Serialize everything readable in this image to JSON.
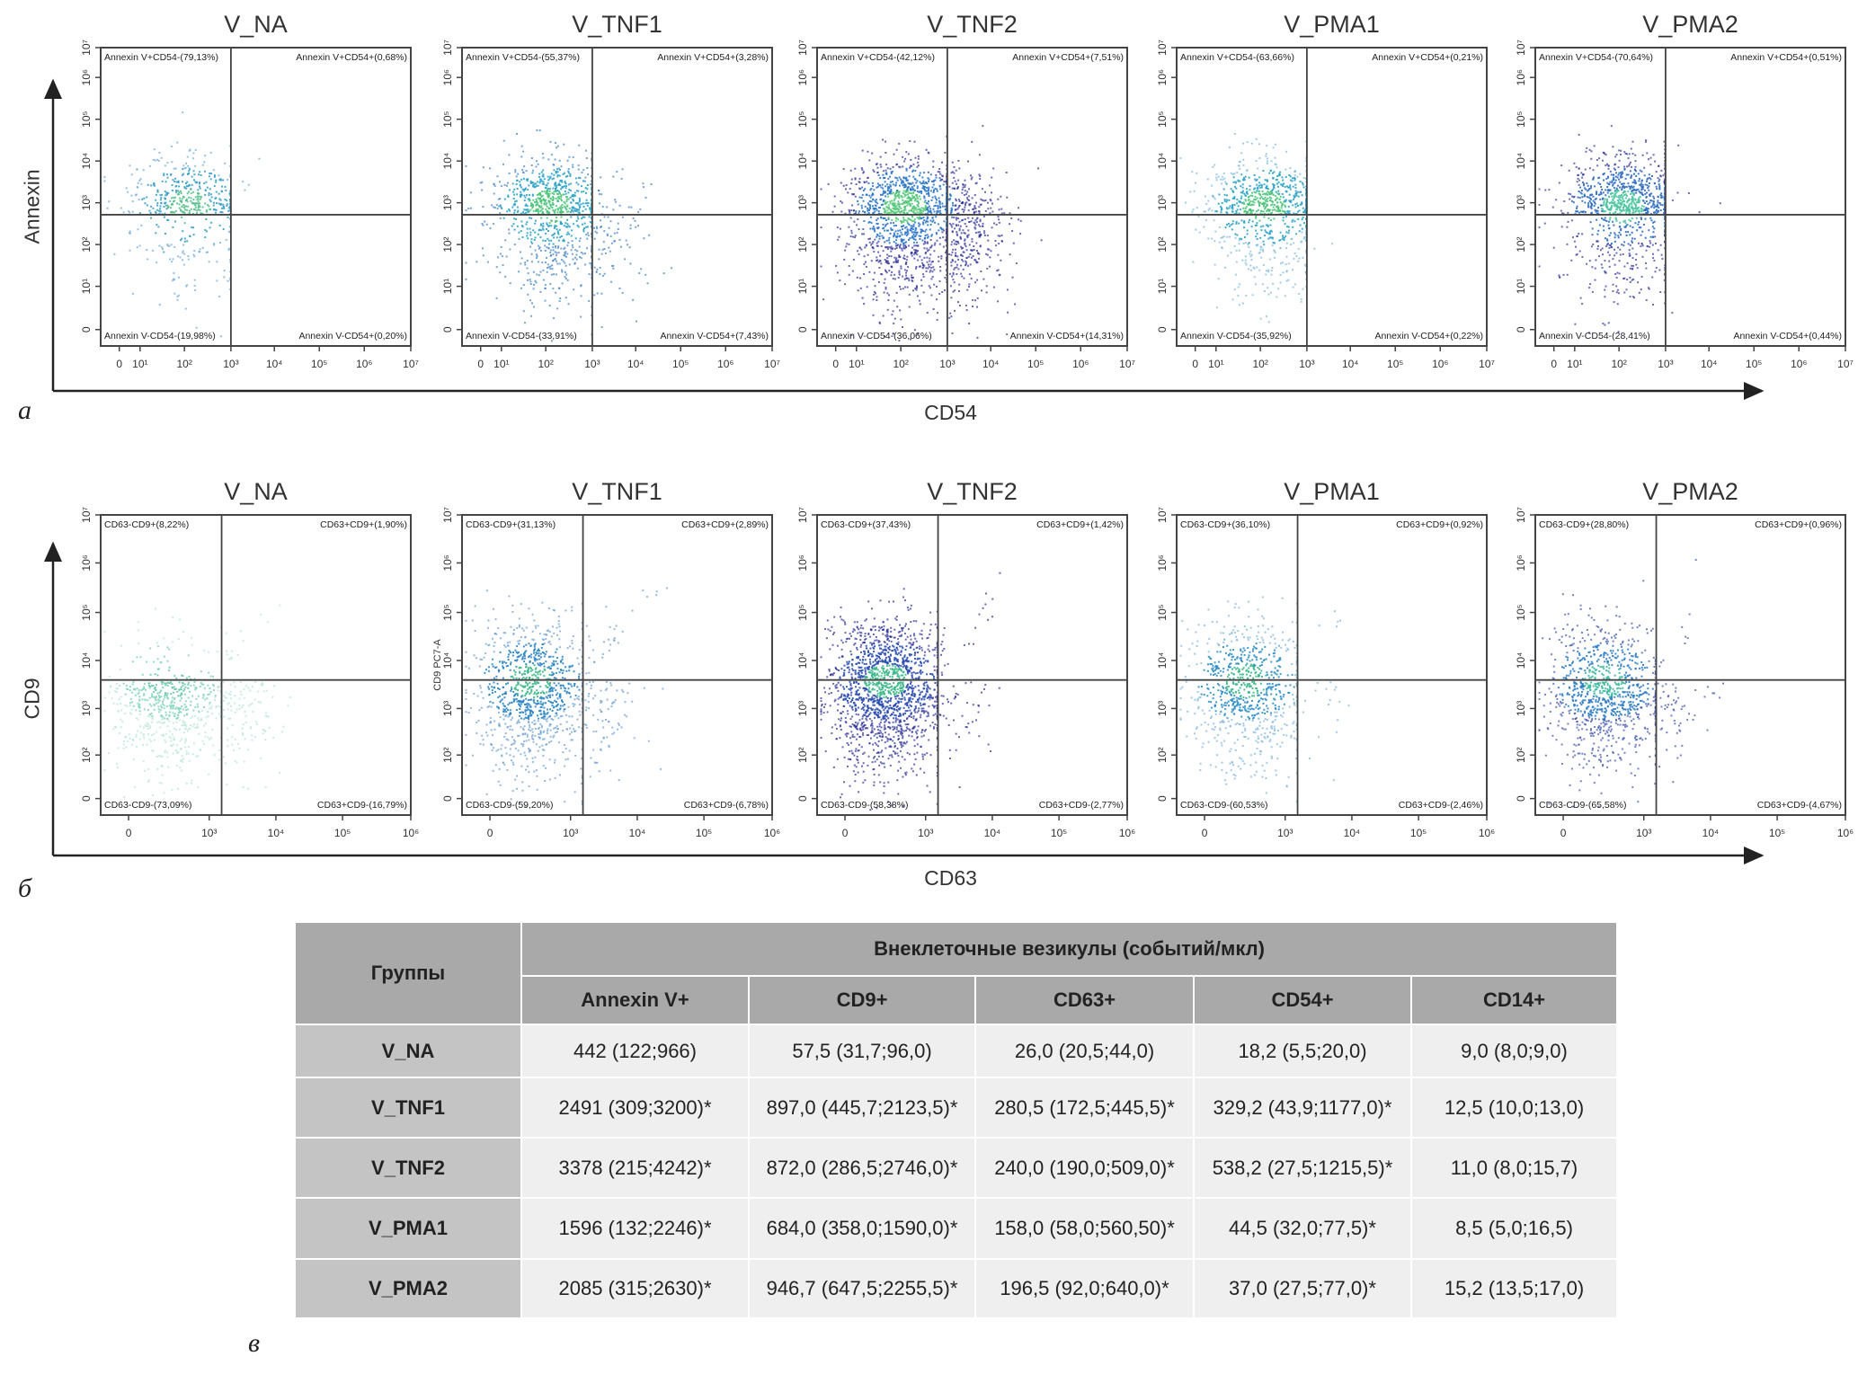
{
  "figure_letters": {
    "a": "а",
    "b": "б",
    "c": "в"
  },
  "chart_data": [
    {
      "type": "scatter",
      "row": "a",
      "xlabel": "CD54",
      "ylabel": "Annexin",
      "x_ticks": [
        "0",
        "10¹",
        "10²",
        "10³",
        "10⁴",
        "10⁵",
        "10⁶",
        "10⁷"
      ],
      "y_ticks": [
        "0",
        "10¹",
        "10²",
        "10³",
        "10⁴",
        "10⁵",
        "10⁶",
        "10⁷"
      ],
      "scale": "log",
      "gate": {
        "x": 1000,
        "y": 1000
      },
      "panels": [
        {
          "title": "V_NA",
          "ul": "Annexin V+CD54-(79,13%)",
          "ur": "Annexin V+CD54+(0,68%)",
          "ll": "Annexin V-CD54-(19,98%)",
          "lr": "Annexin V-CD54+(0,20%)",
          "pct": [
            79.13,
            0.68,
            19.98,
            0.2
          ],
          "palette": [
            "#58c08a",
            "#3aa0c8",
            "#6aa6d8"
          ]
        },
        {
          "title": "V_TNF1",
          "ul": "Annexin V+CD54-(55,37%)",
          "ur": "Annexin V+CD54+(3,28%)",
          "ll": "Annexin V-CD54-(33,91%)",
          "lr": "Annexin V-CD54+(7,43%)",
          "pct": [
            55.37,
            3.28,
            33.91,
            7.43
          ],
          "palette": [
            "#4cc47a",
            "#2ea3c8",
            "#3d7fc4"
          ]
        },
        {
          "title": "V_TNF2",
          "ul": "Annexin V+CD54-(42,12%)",
          "ur": "Annexin V+CD54+(7,51%)",
          "ll": "Annexin V-CD54-(36,06%)",
          "lr": "Annexin V-CD54+(14,31%)",
          "pct": [
            42.12,
            7.51,
            36.06,
            14.31
          ],
          "palette": [
            "#55c87a",
            "#2f78c6",
            "#2a2e96"
          ]
        },
        {
          "title": "V_PMA1",
          "ul": "Annexin V+CD54-(63,66%)",
          "ur": "Annexin V+CD54+(0,21%)",
          "ll": "Annexin V-CD54-(35,92%)",
          "lr": "Annexin V-CD54+(0,22%)",
          "pct": [
            63.66,
            0.21,
            35.92,
            0.22
          ],
          "palette": [
            "#4cc47a",
            "#2ea3c8",
            "#7ab8dc"
          ]
        },
        {
          "title": "V_PMA2",
          "ul": "Annexin V+CD54-(70,64%)",
          "ur": "Annexin V+CD54+(0,51%)",
          "ll": "Annexin V-CD54-(28,41%)",
          "lr": "Annexin V-CD54+(0,44%)",
          "pct": [
            70.64,
            0.51,
            28.41,
            0.44
          ],
          "palette": [
            "#4cc4a0",
            "#2f6cc0",
            "#2c3596"
          ]
        }
      ]
    },
    {
      "type": "scatter",
      "row": "b",
      "xlabel": "CD63",
      "ylabel": "CD9",
      "x_ticks": [
        "0",
        "10³",
        "10⁴",
        "10⁵",
        "10⁶"
      ],
      "y_ticks": [
        "0",
        "10²",
        "10³",
        "10⁴",
        "10⁵",
        "10⁶",
        "10⁷"
      ],
      "scale": "log",
      "gate": {
        "x": 1500,
        "y": 5000
      },
      "inner_ylabel": "CD9 PC7-A",
      "panels": [
        {
          "title": "V_NA",
          "ul": "CD63-CD9+(8,22%)",
          "ur": "CD63+CD9+(1,90%)",
          "ll": "CD63-CD9-(73,09%)",
          "lr": "CD63+CD9-(16,79%)",
          "pct": [
            8.22,
            1.9,
            73.09,
            16.79
          ],
          "palette": [
            "#6fcaa8",
            "#8ad6c0",
            "#b4e4d6"
          ]
        },
        {
          "title": "V_TNF1",
          "ul": "CD63-CD9+(31,13%)",
          "ur": "CD63+CD9+(2,89%)",
          "ll": "CD63-CD9-(59,20%)",
          "lr": "CD63+CD9-(6,78%)",
          "pct": [
            31.13,
            2.89,
            59.2,
            6.78
          ],
          "palette": [
            "#3cb88a",
            "#2e86c4",
            "#6a9cd0"
          ]
        },
        {
          "title": "V_TNF2",
          "ul": "CD63-CD9+(37,43%)",
          "ur": "CD63+CD9+(1,42%)",
          "ll": "CD63-CD9-(58,38%)",
          "lr": "CD63+CD9-(2,77%)",
          "pct": [
            37.43,
            1.42,
            58.38,
            2.77
          ],
          "palette": [
            "#3cb88a",
            "#2e4fb0",
            "#2a2e96"
          ]
        },
        {
          "title": "V_PMA1",
          "ul": "CD63-CD9+(36,10%)",
          "ur": "CD63+CD9+(0,92%)",
          "ll": "CD63-CD9-(60,53%)",
          "lr": "CD63+CD9-(2,46%)",
          "pct": [
            36.1,
            0.92,
            60.53,
            2.46
          ],
          "palette": [
            "#3cb88a",
            "#2e8fc6",
            "#7ab2dc"
          ]
        },
        {
          "title": "V_PMA2",
          "ul": "CD63-CD9+(28,80%)",
          "ur": "CD63+CD9+(0,96%)",
          "ll": "CD63-CD9-(65,58%)",
          "lr": "CD63+CD9-(4,67%)",
          "pct": [
            28.8,
            0.96,
            65.58,
            4.67
          ],
          "palette": [
            "#3cb8a0",
            "#2e7cc4",
            "#3a50a8"
          ]
        }
      ]
    },
    {
      "type": "table",
      "row": "c",
      "group_header": "Группы",
      "span_header": "Внеклеточные везикулы (событий/мкл)",
      "columns": [
        "Annexin V+",
        "CD9+",
        "CD63+",
        "CD54+",
        "CD14+"
      ],
      "rows": [
        {
          "group": "V_NA",
          "cells": [
            "442  (122;966)",
            "57,5  (31,7;96,0)",
            "26,0 (20,5;44,0)",
            "18,2  (5,5;20,0)",
            "9,0  (8,0;9,0)"
          ]
        },
        {
          "group": "V_TNF1",
          "cells": [
            "2491 (309;3200)*",
            "897,0 (445,7;2123,5)*",
            "280,5 (172,5;445,5)*",
            "329,2 (43,9;1177,0)*",
            "12,5 (10,0;13,0)"
          ]
        },
        {
          "group": "V_TNF2",
          "cells": [
            "3378  (215;4242)*",
            "872,0 (286,5;2746,0)*",
            "240,0 (190,0;509,0)*",
            "538,2 (27,5;1215,5)*",
            "11,0  (8,0;15,7)"
          ]
        },
        {
          "group": "V_PMA1",
          "cells": [
            "1596 (132;2246)*",
            "684,0 (358,0;1590,0)*",
            "158,0 (58,0;560,50)*",
            "44,5 (32,0;77,5)*",
            "8,5  (5,0;16,5)"
          ]
        },
        {
          "group": "V_PMA2",
          "cells": [
            "2085 (315;2630)*",
            "946,7 (647,5;2255,5)*",
            "196,5 (92,0;640,0)*",
            "37,0 (27,5;77,0)*",
            "15,2 (13,5;17,0)"
          ]
        }
      ]
    }
  ]
}
